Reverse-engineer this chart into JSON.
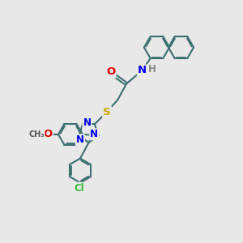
{
  "bg_color": "#e8e8e8",
  "bond_color": "#3a7070",
  "bond_width": 1.5,
  "atom_colors": {
    "N": "#0000ee",
    "O": "#dd0000",
    "S": "#ccaa00",
    "Cl": "#33bb33",
    "H": "#888888"
  },
  "font_size": 8.5,
  "nap_r": 0.52,
  "ring_r": 0.5,
  "tri_r": 0.42
}
